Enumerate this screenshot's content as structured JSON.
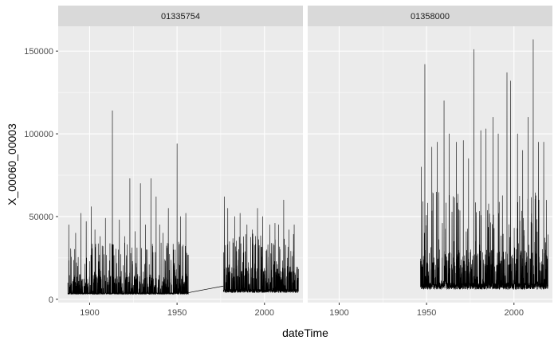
{
  "chart_data": {
    "type": "line",
    "xlabel": "dateTime",
    "ylabel": "X_00060_00003",
    "xlim": [
      1882,
      2022
    ],
    "ylim": [
      -2000,
      165000
    ],
    "x_ticks": [
      "1900",
      "1950",
      "2000"
    ],
    "y_ticks": [
      {
        "value": 0,
        "label": "0"
      },
      {
        "value": 50000,
        "label": "50000"
      },
      {
        "value": 100000,
        "label": "100000"
      },
      {
        "value": 150000,
        "label": "150000"
      }
    ],
    "grid": true,
    "line_color": "#000000",
    "panel_bg": "#ebebeb",
    "strip_bg": "#d9d9d9",
    "panels": [
      {
        "name": "01335754",
        "segments": [
          {
            "x_start": 1887.5,
            "x_end": 1956.5,
            "base": [
              3000,
              4000
            ],
            "typical_peak": [
              15000,
              35000
            ],
            "peaks": [
              [
                1888,
                45000
              ],
              [
                1892,
                40000
              ],
              [
                1895,
                52000
              ],
              [
                1898,
                47000
              ],
              [
                1901,
                56000
              ],
              [
                1903,
                42000
              ],
              [
                1906,
                38000
              ],
              [
                1909,
                49000
              ],
              [
                1913,
                114000
              ],
              [
                1917,
                48000
              ],
              [
                1920,
                38000
              ],
              [
                1923,
                73000
              ],
              [
                1926,
                41000
              ],
              [
                1929,
                70000
              ],
              [
                1932,
                45000
              ],
              [
                1935,
                73000
              ],
              [
                1938,
                62000
              ],
              [
                1940,
                45000
              ],
              [
                1942,
                40000
              ],
              [
                1945,
                55000
              ],
              [
                1950,
                94000
              ],
              [
                1952,
                50000
              ],
              [
                1955,
                52000
              ]
            ]
          },
          {
            "x_start": 1976.5,
            "x_end": 2019.5,
            "base": [
              4000,
              6000
            ],
            "typical_peak": [
              20000,
              40000
            ],
            "peaks": [
              [
                1977,
                62000
              ],
              [
                1979,
                55000
              ],
              [
                1983,
                50000
              ],
              [
                1986,
                52000
              ],
              [
                1990,
                45000
              ],
              [
                1993,
                42000
              ],
              [
                1996,
                55000
              ],
              [
                1999,
                50000
              ],
              [
                2003,
                45000
              ],
              [
                2006,
                46000
              ],
              [
                2008,
                45000
              ],
              [
                2011,
                60000
              ],
              [
                2014,
                42000
              ],
              [
                2017,
                45000
              ]
            ]
          }
        ],
        "gap_connector": [
          [
            1956.5,
            4000
          ],
          [
            1976.5,
            8000
          ]
        ]
      },
      {
        "name": "01358000",
        "segments": [
          {
            "x_start": 1946.5,
            "x_end": 2019.5,
            "base": [
              6000,
              10000
            ],
            "typical_peak": [
              30000,
              65000
            ],
            "peaks": [
              [
                1947,
                80000
              ],
              [
                1949,
                142000
              ],
              [
                1953,
                92000
              ],
              [
                1956,
                95000
              ],
              [
                1960,
                120000
              ],
              [
                1963,
                100000
              ],
              [
                1967,
                95000
              ],
              [
                1971,
                96000
              ],
              [
                1974,
                85000
              ],
              [
                1977,
                151000
              ],
              [
                1981,
                102000
              ],
              [
                1984,
                103000
              ],
              [
                1988,
                110000
              ],
              [
                1991,
                100000
              ],
              [
                1996,
                137000
              ],
              [
                1998,
                132000
              ],
              [
                2002,
                100000
              ],
              [
                2005,
                90000
              ],
              [
                2008,
                110000
              ],
              [
                2011,
                157000
              ],
              [
                2014,
                95000
              ],
              [
                2017,
                95000
              ]
            ]
          }
        ]
      }
    ]
  }
}
